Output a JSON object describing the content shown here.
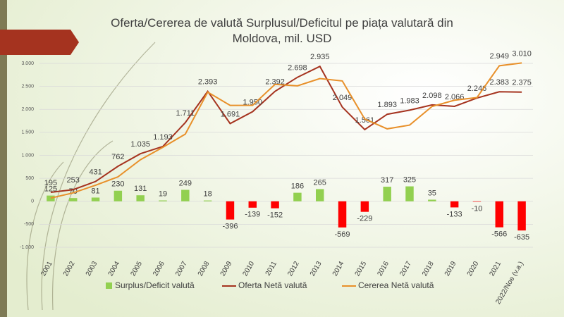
{
  "chart_data": {
    "type": "bar-line",
    "title": "Oferta/Cererea  de valută Surplusul/Deficitul pe piața valutară din Moldova, mil. USD",
    "categories": [
      "2001",
      "2002",
      "2003",
      "2004",
      "2005",
      "2006",
      "2007",
      "2008",
      "2009",
      "2010",
      "2011",
      "2012",
      "2013",
      "2014",
      "2015",
      "2016",
      "2017",
      "2018",
      "2019",
      "2020",
      "2021",
      "2022/Noe (v.a.)"
    ],
    "series": [
      {
        "name": "Surplus/Deficit valută",
        "kind": "bar",
        "color": "#92d050",
        "negative_color": "#ff0000",
        "values": [
          125,
          70,
          81,
          230,
          131,
          19,
          249,
          18,
          -396,
          -139,
          -152,
          186,
          265,
          -569,
          -229,
          317,
          325,
          35,
          -133,
          -10,
          -566,
          -635
        ]
      },
      {
        "name": "Oferta Netă valută",
        "kind": "line",
        "color": "#a5331f",
        "values": [
          195,
          253,
          431,
          762,
          1035,
          1193,
          1711,
          2393,
          1691,
          1950,
          2392,
          2698,
          2935,
          2049,
          1561,
          1893,
          1983,
          2098,
          2066,
          2246,
          2383,
          2375
        ],
        "value_labels": [
          "195",
          "253",
          "431",
          "762",
          "1.035",
          "1.193",
          "1.711",
          "2.393",
          "1.691",
          "1.950",
          "2.392",
          "2.698",
          "2.935",
          "2.049",
          "1.561",
          "1.893",
          "1.983",
          "2.098",
          "2.066",
          "2.246",
          "2.383",
          "2.375"
        ]
      },
      {
        "name": "Cererea Netă valută",
        "kind": "line",
        "color": "#e8902a",
        "values": [
          70,
          183,
          350,
          532,
          904,
          1174,
          1462,
          2375,
          2087,
          2089,
          2544,
          2512,
          2670,
          2618,
          1790,
          1576,
          1658,
          2063,
          2199,
          2256,
          2949,
          3010
        ],
        "value_labels": [
          null,
          null,
          null,
          null,
          null,
          null,
          null,
          null,
          null,
          null,
          null,
          null,
          null,
          null,
          null,
          null,
          null,
          null,
          null,
          null,
          "2.949",
          "3.010"
        ]
      }
    ],
    "ylim": [
      -1000,
      3000
    ],
    "yticks": [
      {
        "value": -1000,
        "label": "-1.000"
      },
      {
        "value": -500,
        "label": "-500"
      },
      0,
      500,
      {
        "value": 1000,
        "label": "1.000"
      },
      {
        "value": 1500,
        "label": "1.500"
      },
      {
        "value": 2000,
        "label": "2.000"
      },
      {
        "value": 2500,
        "label": "2.500"
      },
      {
        "value": 3000,
        "label": "3.000"
      }
    ],
    "grid": true,
    "legend": "bottom"
  }
}
